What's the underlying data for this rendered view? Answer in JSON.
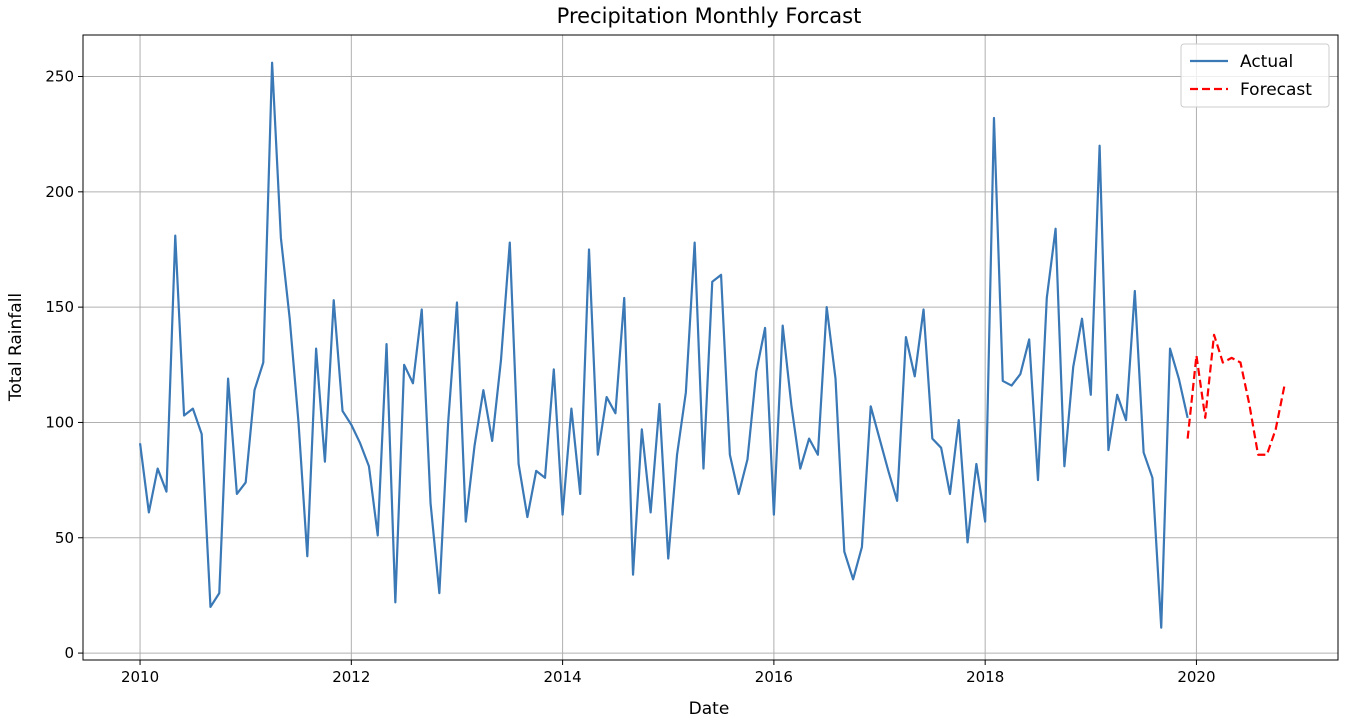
{
  "chart_data": {
    "type": "line",
    "title": "Precipitation Monthly Forcast",
    "xlabel": "Date",
    "ylabel": "Total Rainfall",
    "xlim": [
      2009.46,
      2021.34
    ],
    "ylim": [
      -3,
      268
    ],
    "x_ticks": [
      2010,
      2012,
      2014,
      2016,
      2018,
      2020
    ],
    "x_tick_labels": [
      "2010",
      "2012",
      "2014",
      "2016",
      "2018",
      "2020"
    ],
    "y_ticks": [
      0,
      50,
      100,
      150,
      200,
      250
    ],
    "y_tick_labels": [
      "0",
      "50",
      "100",
      "150",
      "200",
      "250"
    ],
    "grid": true,
    "legend_position": "top-right",
    "colors": {
      "actual": "#3a78b6",
      "forecast": "#ff0000",
      "grid": "#b0b0b0"
    },
    "series": [
      {
        "name": "Actual",
        "style": "solid",
        "x": [
          "2010-01",
          "2010-02",
          "2010-03",
          "2010-04",
          "2010-05",
          "2010-06",
          "2010-07",
          "2010-08",
          "2010-09",
          "2010-10",
          "2010-11",
          "2010-12",
          "2011-01",
          "2011-02",
          "2011-03",
          "2011-04",
          "2011-05",
          "2011-06",
          "2011-07",
          "2011-08",
          "2011-09",
          "2011-10",
          "2011-11",
          "2011-12",
          "2012-01",
          "2012-02",
          "2012-03",
          "2012-04",
          "2012-05",
          "2012-06",
          "2012-07",
          "2012-08",
          "2012-09",
          "2012-10",
          "2012-11",
          "2012-12",
          "2013-01",
          "2013-02",
          "2013-03",
          "2013-04",
          "2013-05",
          "2013-06",
          "2013-07",
          "2013-08",
          "2013-09",
          "2013-10",
          "2013-11",
          "2013-12",
          "2014-01",
          "2014-02",
          "2014-03",
          "2014-04",
          "2014-05",
          "2014-06",
          "2014-07",
          "2014-08",
          "2014-09",
          "2014-10",
          "2014-11",
          "2014-12",
          "2015-01",
          "2015-02",
          "2015-03",
          "2015-04",
          "2015-05",
          "2015-06",
          "2015-07",
          "2015-08",
          "2015-09",
          "2015-10",
          "2015-11",
          "2015-12",
          "2016-01",
          "2016-02",
          "2016-03",
          "2016-04",
          "2016-05",
          "2016-06",
          "2016-07",
          "2016-08",
          "2016-09",
          "2016-10",
          "2016-11",
          "2016-12",
          "2017-01",
          "2017-02",
          "2017-03",
          "2017-04",
          "2017-05",
          "2017-06",
          "2017-07",
          "2017-08",
          "2017-09",
          "2017-10",
          "2017-11",
          "2017-12",
          "2018-01",
          "2018-02",
          "2018-03",
          "2018-04",
          "2018-05",
          "2018-06",
          "2018-07",
          "2018-08",
          "2018-09",
          "2018-10",
          "2018-11",
          "2018-12",
          "2019-01",
          "2019-02",
          "2019-03",
          "2019-04",
          "2019-05",
          "2019-06",
          "2019-07",
          "2019-08",
          "2019-09",
          "2019-10",
          "2019-11",
          "2019-12"
        ],
        "values": [
          91,
          61,
          80,
          70,
          181,
          103,
          106,
          95,
          20,
          26,
          119,
          69,
          74,
          114,
          126,
          256,
          180,
          145,
          100,
          42,
          132,
          83,
          153,
          105,
          99,
          91,
          81,
          51,
          134,
          22,
          125,
          117,
          149,
          65,
          26,
          100,
          152,
          57,
          90,
          114,
          92,
          127,
          178,
          82,
          59,
          79,
          76,
          123,
          60,
          106,
          69,
          175,
          86,
          111,
          104,
          154,
          34,
          97,
          61,
          108,
          41,
          86,
          113,
          178,
          80,
          161,
          164,
          86,
          69,
          84,
          122,
          141,
          60,
          142,
          107,
          80,
          93,
          86,
          150,
          119,
          44,
          32,
          46,
          107,
          93,
          79,
          66,
          137,
          120,
          149,
          93,
          89,
          69,
          101,
          48,
          82,
          57,
          232,
          118,
          116,
          121,
          136,
          75,
          154,
          184,
          81,
          124,
          145,
          112,
          220,
          88,
          112,
          101,
          157,
          87,
          76,
          11,
          132,
          119,
          102
        ]
      },
      {
        "name": "Forecast",
        "style": "dashed",
        "x": [
          "2019-12",
          "2020-01",
          "2020-02",
          "2020-03",
          "2020-04",
          "2020-05",
          "2020-06",
          "2020-07",
          "2020-08",
          "2020-09",
          "2020-10",
          "2020-11"
        ],
        "values": [
          93,
          129,
          102,
          138,
          126,
          128,
          126,
          108,
          86,
          86,
          97,
          116
        ]
      }
    ]
  }
}
